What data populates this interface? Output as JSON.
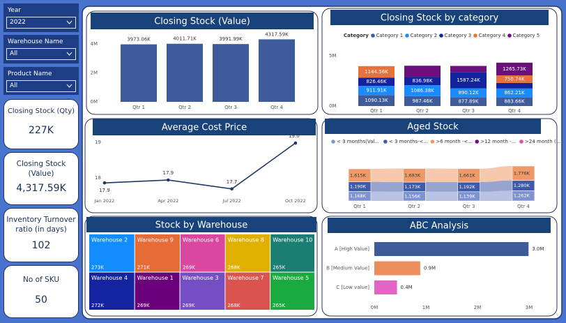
{
  "filters": [
    {
      "label": "Year",
      "value": "2022"
    },
    {
      "label": "Warehouse Name",
      "value": "All"
    },
    {
      "label": "Product Name",
      "value": "All"
    }
  ],
  "kpis": [
    {
      "label": "Closing Stock (Qty)",
      "value": "227K"
    },
    {
      "label": "Closing Stock (Value)",
      "value": "4,317.59K"
    },
    {
      "label": "Inventory Turnover ratio (in days)",
      "value": "102"
    },
    {
      "label": "No of SKU",
      "value": "50"
    }
  ],
  "chart_data": [
    {
      "type": "bar",
      "title": "Closing Stock (Value)",
      "categories": [
        "Qtr 1",
        "Qtr 2",
        "Qtr 3",
        "Qtr 4"
      ],
      "values": [
        3973060,
        4011710,
        3991990,
        4317590
      ],
      "value_labels": [
        "3973.06K",
        "4011.71K",
        "3991.99K",
        "4317.59K"
      ],
      "color": "#3e5c9c",
      "ylim": [
        0,
        4500000
      ],
      "yticks": [
        {
          "value": 0,
          "label": "0M"
        },
        {
          "value": 2000000,
          "label": "2M"
        },
        {
          "value": 4000000,
          "label": "4M"
        }
      ],
      "grid": false
    },
    {
      "type": "stacked_bar",
      "title": "Closing Stock by category",
      "legend_title": "Category",
      "categories": [
        "Qtr 1",
        "Qtr 2",
        "Qtr 3",
        "Qtr 4"
      ],
      "ylim": [
        0,
        5500000
      ],
      "yticks": [
        {
          "value": 0,
          "label": "0M"
        },
        {
          "value": 5000000,
          "label": "5M"
        }
      ],
      "series": [
        {
          "name": "Category 1",
          "color": "#3e5c9c",
          "values": [
            1090130,
            987460,
            877890,
            883660
          ],
          "value_labels": [
            "1090.13K",
            "987.46K",
            "877.89K",
            "883.66K"
          ]
        },
        {
          "name": "Category 2",
          "color": "#1a8cff",
          "values": [
            911910,
            1086380,
            890120,
            862210
          ],
          "value_labels": [
            "911.91K",
            "1086.38K",
            "890.12K",
            "862.21K"
          ]
        },
        {
          "name": "Category 3",
          "color": "#13239e",
          "values": [
            826460,
            836980,
            1587240,
            555250
          ],
          "value_labels": [
            "826.46K",
            "836.98K",
            "1587.24K",
            null
          ]
        },
        {
          "name": "Category 4",
          "color": "#e8703a",
          "values": [
            1144560,
            null,
            null,
            750740
          ],
          "value_labels": [
            "1144.56K",
            null,
            null,
            "750.74K"
          ]
        },
        {
          "name": "Category 5",
          "color": "#6b0f7d",
          "values": [
            null,
            1100890,
            636740,
            1265730
          ],
          "value_labels": [
            null,
            null,
            null,
            "1265.73K"
          ]
        }
      ]
    },
    {
      "type": "line",
      "title": "Average Cost Price",
      "categories": [
        "Jan 2022",
        "Apr 2022",
        "Jul 2022",
        "Oct 2022"
      ],
      "values": [
        17.86,
        17.94,
        17.69,
        18.98
      ],
      "value_labels": [
        "17.9",
        "17.9",
        "17.7",
        "19.0"
      ],
      "color": "#1f3864",
      "ylim": [
        17.5,
        19.2
      ],
      "yticks": [
        18,
        19
      ]
    },
    {
      "type": "ribbon",
      "title": "Aged Stock",
      "categories": [
        "Qtr 1",
        "Qtr 2",
        "Qtr 3",
        "Qtr 4"
      ],
      "series": [
        {
          "name": "< 3 months(Val...",
          "color": "#7f93d0",
          "values": [
            1168000,
            1156000,
            1139000,
            1262000
          ],
          "value_labels": [
            "1,168K",
            "1,156K",
            "1,139K",
            "1,262K"
          ]
        },
        {
          "name": "< 3 months-<...",
          "color": "#3f5aa8",
          "values": [
            1190000,
            1173000,
            1192000,
            1280000
          ],
          "value_labels": [
            "1,190K",
            "1,173K",
            "1,192K",
            "1,280K"
          ]
        },
        {
          "name": ">6 month -<...",
          "color": "#ee9a68",
          "values": [
            1615000,
            1683000,
            1661000,
            1776000
          ],
          "value_labels": [
            "1,615K",
            "1,683K",
            "1,661K",
            "1,776K"
          ]
        },
        {
          "name": ">12 month -...",
          "color": "#6b0f7d",
          "values": [
            null,
            null,
            null,
            null
          ]
        },
        {
          "name": ">24 month (...",
          "color": "#d64bb5",
          "values": [
            null,
            null,
            null,
            null
          ]
        }
      ]
    },
    {
      "type": "treemap",
      "title": "Stock by Warehouse",
      "categories": [
        "Warehouse 2",
        "Warehouse 9",
        "Warehouse 6",
        "Warehouse 8",
        "Warehouse 10",
        "Warehouse 4",
        "Warehouse 1",
        "Warehouse 3",
        "Warehouse 7",
        "Warehouse 5"
      ],
      "values": [
        273000,
        271000,
        269000,
        268000,
        265000,
        272000,
        269000,
        269000,
        268000,
        265000
      ],
      "value_labels": [
        "273K",
        "271K",
        "269K",
        "268K",
        "265K",
        "272K",
        "269K",
        "269K",
        "268K",
        "265K"
      ],
      "colors": [
        "#118dff",
        "#e66c37",
        "#d9479e",
        "#e0b000",
        "#1a7f72",
        "#14239e",
        "#6b007b",
        "#744ec2",
        "#d9534f",
        "#1aab40"
      ]
    },
    {
      "type": "horizontal_bar",
      "title": "ABC Analysis",
      "categories": [
        "A [High Value]",
        "B [Medium Value]",
        "C [Low value]"
      ],
      "values": [
        2990000,
        890000,
        440000
      ],
      "value_labels": [
        "3.0M",
        "0.9M",
        "0.4M"
      ],
      "colors": [
        "#3e5c9c",
        "#ec8d5c",
        "#e264c4"
      ],
      "xlim": [
        0,
        3200000
      ],
      "xticks": [
        {
          "value": 0,
          "label": "0M"
        },
        {
          "value": 1000000,
          "label": "1M"
        },
        {
          "value": 2000000,
          "label": "2M"
        },
        {
          "value": 3000000,
          "label": "3M"
        }
      ]
    }
  ]
}
